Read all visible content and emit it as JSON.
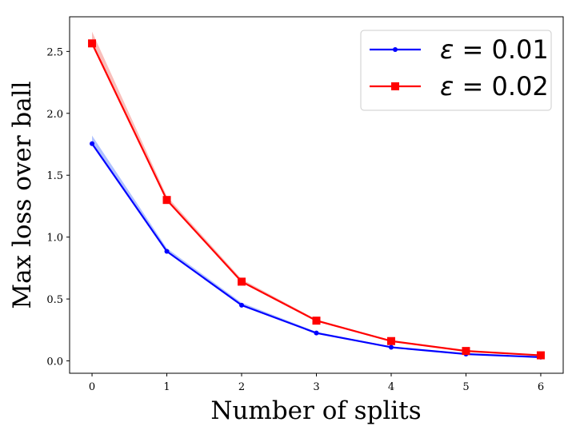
{
  "chart_data": {
    "type": "line",
    "title": "",
    "xlabel": "Number of splits",
    "ylabel": "Max loss over ball",
    "x": [
      0,
      1,
      2,
      3,
      4,
      5,
      6
    ],
    "xticks": [
      "0",
      "1",
      "2",
      "3",
      "4",
      "5",
      "6"
    ],
    "yticks": [
      "0.0",
      "0.5",
      "1.0",
      "1.5",
      "2.0",
      "2.5"
    ],
    "xlim": [
      -0.3,
      6.3
    ],
    "ylim": [
      -0.1,
      2.78
    ],
    "grid": false,
    "legend_position": "top-right",
    "series": [
      {
        "name": "ε = 0.01",
        "label_prefix": "ε",
        "label_value": " = 0.01",
        "color": "#0000ff",
        "band_color": "#6f8fff",
        "marker": "circle",
        "values": [
          1.755,
          0.885,
          0.45,
          0.225,
          0.11,
          0.055,
          0.03
        ],
        "upper": [
          1.82,
          0.91,
          0.47,
          0.235,
          0.115,
          0.058,
          0.032
        ]
      },
      {
        "name": "ε = 0.02",
        "label_prefix": "ε",
        "label_value": " = 0.02",
        "color": "#ff0000",
        "band_color": "#f58a84",
        "marker": "square",
        "values": [
          2.565,
          1.3,
          0.64,
          0.325,
          0.16,
          0.08,
          0.045
        ],
        "upper": [
          2.66,
          1.33,
          0.66,
          0.335,
          0.165,
          0.083,
          0.047
        ]
      }
    ]
  }
}
